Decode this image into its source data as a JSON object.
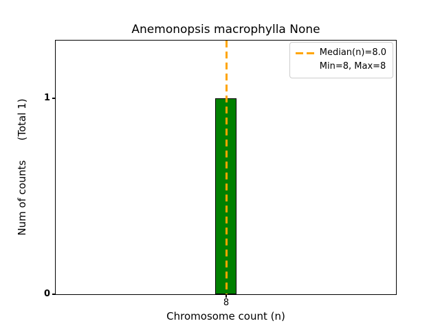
{
  "figure": {
    "title": "Anemonopsis macrophylla None",
    "xlabel": "Chromosome count (n)",
    "ylabel": "Num of counts      (Total 1)",
    "xticks": [
      "8"
    ],
    "yticks": [
      "0",
      "1"
    ],
    "legend": {
      "median_label": "Median(n)=8.0",
      "minmax_label": "Min=8, Max=8"
    },
    "colors": {
      "bar_fill": "#008000",
      "bar_edge": "#000000",
      "median_line": "#FFA500",
      "spine": "#000000",
      "legend_border": "#cccccc",
      "background": "#ffffff"
    }
  },
  "chart_data": {
    "type": "bar",
    "title": "Anemonopsis macrophylla None",
    "xlabel": "Chromosome count (n)",
    "ylabel": "Num of counts      (Total 1)",
    "x": [
      8
    ],
    "values": [
      1
    ],
    "total_counts": 1,
    "median": 8.0,
    "min": 8,
    "max": 8,
    "xticks": [
      8
    ],
    "yticks": [
      0,
      1
    ],
    "ylim": [
      0,
      1.3
    ],
    "bar_color": "#008000",
    "median_line_color": "#FFA500",
    "median_line_style": "dashed",
    "legend_entries": [
      "Median(n)=8.0",
      "Min=8, Max=8"
    ],
    "legend_position": "upper right",
    "grid": false
  }
}
